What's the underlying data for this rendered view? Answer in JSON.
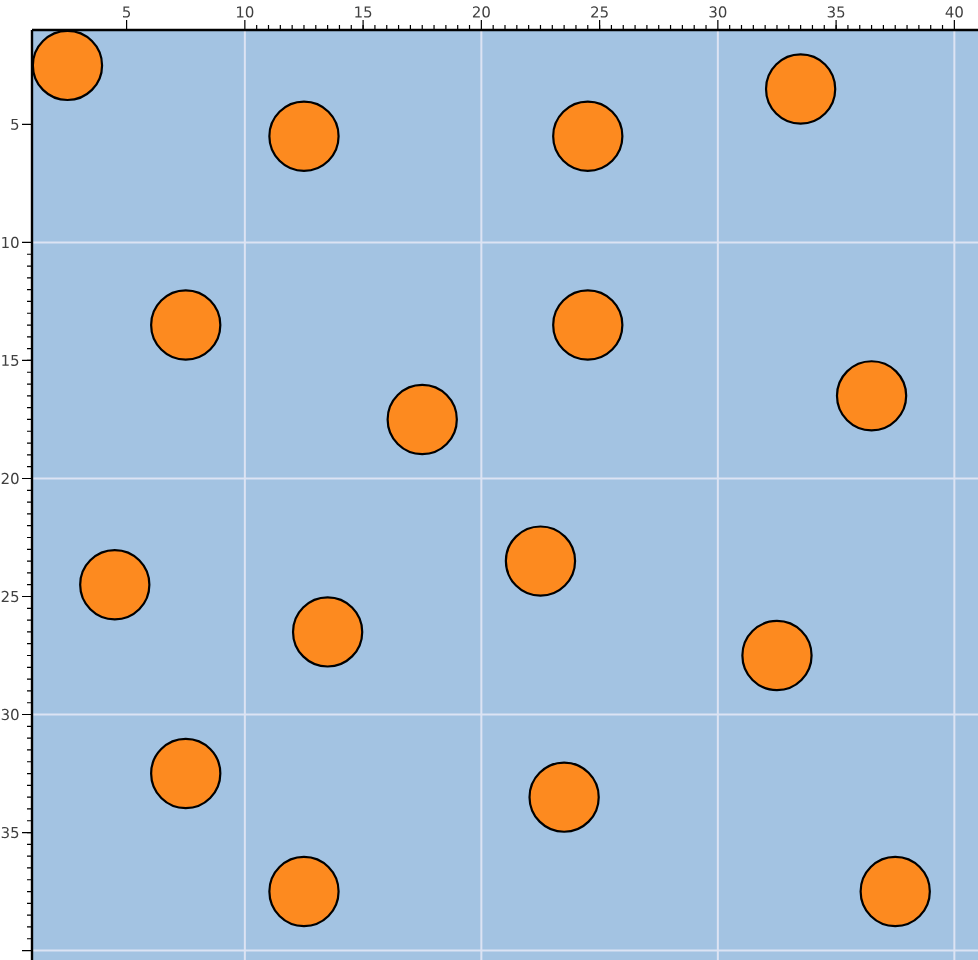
{
  "chart_data": {
    "type": "scatter",
    "x": [
      2.5,
      12.5,
      24.5,
      33.5,
      7.5,
      24.5,
      17.5,
      36.5,
      4.5,
      22.5,
      13.5,
      32.5,
      7.5,
      23.5,
      12.5,
      37.5
    ],
    "values": [
      2.5,
      5.5,
      5.5,
      3.5,
      13.5,
      13.5,
      17.5,
      16.5,
      24.5,
      23.5,
      26.5,
      27.5,
      32.5,
      33.5,
      37.5,
      37.5
    ],
    "color": "#fd8a1f",
    "xlim": [
      1,
      41
    ],
    "ylim": [
      40.4,
      1
    ],
    "xticks": [
      5,
      10,
      15,
      20,
      25,
      30,
      35,
      40
    ],
    "yticks": [
      5,
      10,
      15,
      20,
      25,
      30,
      35,
      {
        "value": 40,
        "label": null
      }
    ],
    "grid": true
  }
}
